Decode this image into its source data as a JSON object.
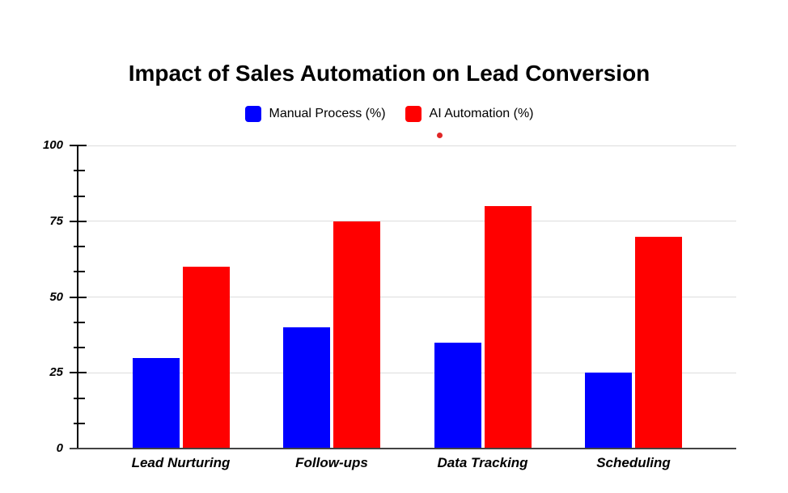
{
  "chart_data": {
    "type": "bar",
    "title": "Impact of Sales Automation on Lead Conversion",
    "categories": [
      "Lead Nurturing",
      "Follow-ups",
      "Data Tracking",
      "Scheduling"
    ],
    "series": [
      {
        "name": "Manual Process (%)",
        "color": "#0000ff",
        "values": [
          30,
          40,
          35,
          25
        ]
      },
      {
        "name": "AI Automation (%)",
        "color": "#ff0000",
        "values": [
          60,
          75,
          80,
          70
        ]
      }
    ],
    "ylim": [
      0,
      100
    ],
    "yticks": [
      0,
      25,
      50,
      75,
      100
    ],
    "minor_ticks_per_interval": 2,
    "grid": "horizontal",
    "legend_position": "top",
    "annotations": {
      "stray_point": {
        "color": "#e02626"
      }
    }
  },
  "colors": {
    "background": "#ffffff",
    "gridline": "#dcdcdc",
    "axis": "#000000",
    "baseline": "#424242",
    "text": "#000000"
  }
}
